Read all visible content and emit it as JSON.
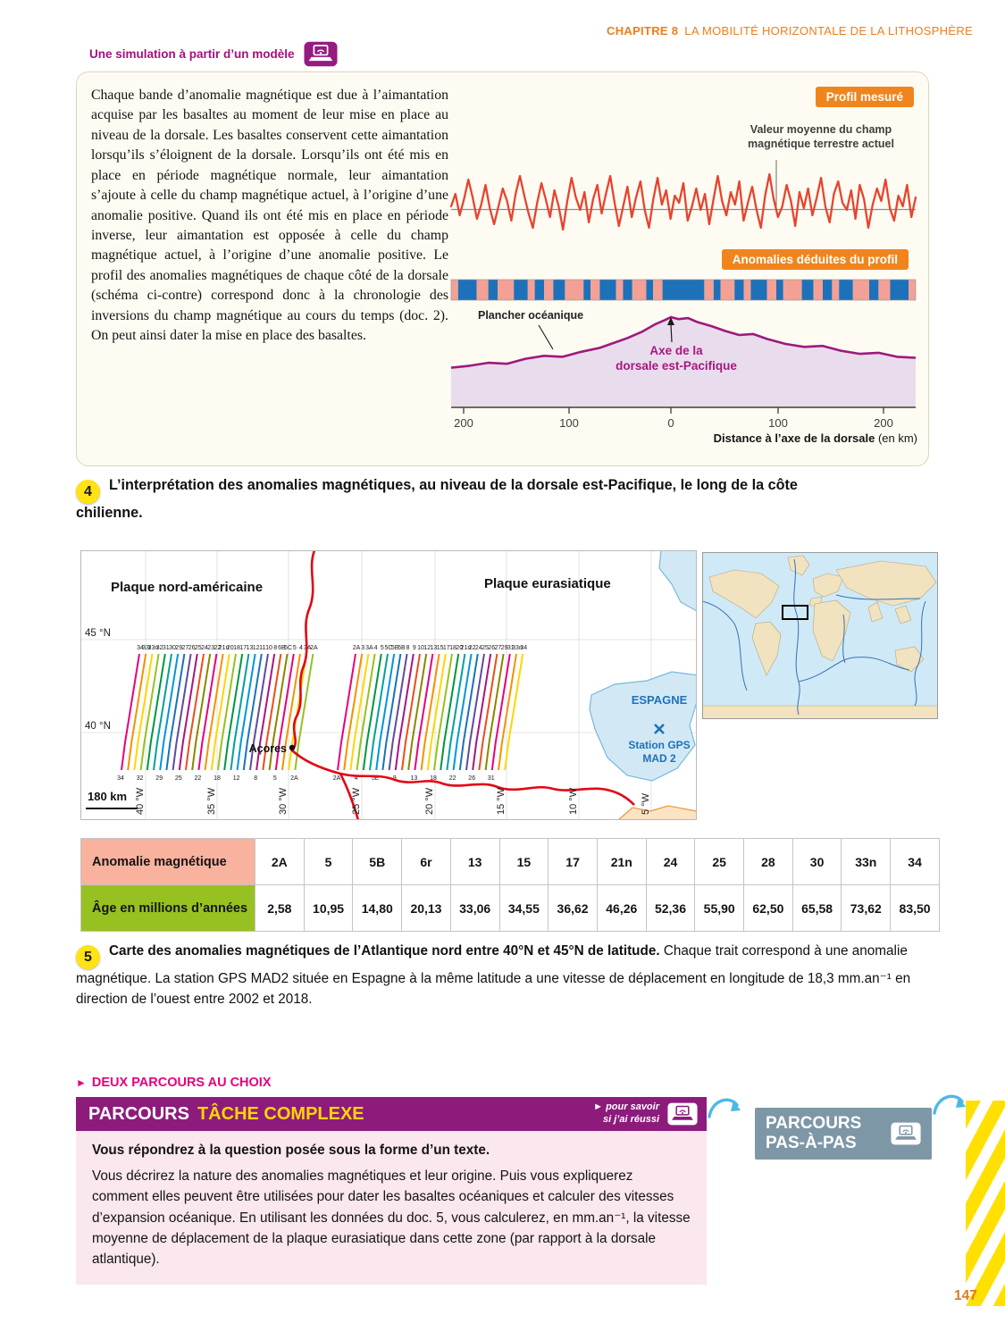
{
  "header": {
    "chapter_label": "CHAPITRE 8",
    "chapter_title": "LA MOBILITÉ HORIZONTALE DE LA LITHOSPHÈRE",
    "sim_label": "Une simulation à partir d’un modèle"
  },
  "colors": {
    "chapter_orange": "#f07d1a",
    "magenta": "#a3117e",
    "badge_orange": "#f0851d",
    "profile_red": "#e8432e",
    "polarity_normal": "#1d71b8",
    "polarity_reverse": "#f4a095",
    "seafloor_line": "#9d1a7c",
    "seafloor_fill": "#e9dcec",
    "ridge_red": "#e30613",
    "table_header_pink": "#f8b29e",
    "table_header_green": "#97c120",
    "banner_purple": "#8d1b7c",
    "banner_yellow": "#ffd500",
    "body_pink": "#fbe7ee",
    "pas_gray_blue": "#7e97a6",
    "hazard_yellow": "#ffe000",
    "caption_badge_yellow": "#ffe312"
  },
  "doc4": {
    "paragraph": "Chaque bande d’anomalie magnétique est due à l’aimantation acquise par les basaltes au moment de leur mise en place au niveau de la dorsale. Les basaltes conservent cette aimantation lorsqu’ils s’éloignent de la dorsale. Lorsqu’ils ont été mis en place en période magnétique normale, leur aimantation s’ajoute à celle du champ magnétique actuel, à l’origine d’une anomalie positive. Quand ils ont été mis en place en période inverse, leur aimantation est opposée à celle du champ magnétique actuel, à l’origine d’une anomalie positive. Le profil des anomalies magnétiques de chaque côté de la dorsale (schéma ci-contre) correspond donc à la chronologie des inversions du champ magnétique au cours du temps (doc. 2). On peut ainsi dater la mise en place des basaltes.",
    "figure": {
      "badge_profile": "Profil mesuré",
      "badge_anomalies": "Anomalies déduites du profil",
      "mean_line1": "Valeur moyenne du champ",
      "mean_line2": "magnétique terrestre actuel",
      "ocean_floor_label": "Plancher océanique",
      "ridge_label_1": "Axe de la",
      "ridge_label_2": "dorsale est-Pacifique",
      "axis_label_bold": "Distance à l’axe de la dorsale",
      "axis_label_unit": " (en km)",
      "x_ticks": [
        "200",
        "100",
        "0",
        "100",
        "200"
      ]
    },
    "caption_num": "4",
    "caption_text": "L’interprétation des anomalies magnétiques, au niveau de la dorsale est-Pacifique, le long de la côte chilienne."
  },
  "chart_data": [
    {
      "type": "line",
      "title": "Profil mesuré",
      "xlabel": "Distance à l’axe de la dorsale (en km)",
      "x_range_km": [
        -230,
        230
      ],
      "x_ticks_km": [
        -200,
        -100,
        0,
        100,
        200
      ],
      "baseline_label": "Valeur moyenne du champ magnétique terrestre actuel",
      "series": [
        {
          "name": "Champ magnétique mesuré (écart relatif à la valeur moyenne)",
          "values": [
            0.1,
            0.45,
            -0.15,
            0.3,
            0.85,
            0.35,
            -0.25,
            0.15,
            0.7,
            0.05,
            -0.4,
            0.1,
            0.6,
            0.25,
            -0.3,
            0.45,
            0.95,
            0.4,
            -0.1,
            -0.5,
            0.2,
            0.75,
            0.3,
            -0.2,
            0.55,
            0.1,
            -0.55,
            0.25,
            0.9,
            0.35,
            0.0,
            0.5,
            -0.35,
            0.3,
            0.7,
            -0.1,
            0.45,
            0.95,
            0.2,
            -0.45,
            0.1,
            0.65,
            -0.2,
            0.35,
            0.8,
            0.0,
            -0.5,
            0.3,
            0.9,
            0.15,
            0.55,
            -0.25,
            0.4,
            0.2,
            0.75,
            -0.3,
            0.1,
            0.6,
            0.0,
            0.45,
            -0.4,
            0.3,
            0.95,
            0.25,
            -0.15,
            0.5,
            0.15,
            0.8,
            -0.3,
            0.2,
            0.65,
            0.0,
            -0.5,
            0.4,
            1.0,
            0.3,
            -0.2,
            0.1,
            0.7,
            0.25,
            -0.45,
            0.5,
            0.05,
            0.6,
            -0.15,
            0.35,
            0.9,
            0.1,
            -0.35,
            0.45,
            0.8,
            0.2,
            0.0,
            0.55,
            -0.25,
            0.7,
            0.3,
            -0.5,
            0.15,
            0.6,
            0.25,
            0.85,
            0.05,
            -0.3,
            0.4,
            0.1,
            0.7,
            -0.2,
            0.35
          ]
        }
      ]
    },
    {
      "type": "heatmap",
      "title": "Anomalies déduites du profil",
      "x_range_km": [
        -230,
        230
      ],
      "polarity_colors": {
        "n": "#1d71b8",
        "r": "#f4a095"
      },
      "segments": [
        [
          0.015,
          "r"
        ],
        [
          0.04,
          "n"
        ],
        [
          0.025,
          "r"
        ],
        [
          0.02,
          "n"
        ],
        [
          0.035,
          "r"
        ],
        [
          0.03,
          "n"
        ],
        [
          0.015,
          "r"
        ],
        [
          0.02,
          "n"
        ],
        [
          0.02,
          "r"
        ],
        [
          0.025,
          "n"
        ],
        [
          0.04,
          "r"
        ],
        [
          0.015,
          "n"
        ],
        [
          0.02,
          "r"
        ],
        [
          0.035,
          "n"
        ],
        [
          0.015,
          "r"
        ],
        [
          0.02,
          "n"
        ],
        [
          0.03,
          "r"
        ],
        [
          0.015,
          "n"
        ],
        [
          0.02,
          "r"
        ],
        [
          0.045,
          "n"
        ],
        [
          0.045,
          "n"
        ],
        [
          0.02,
          "r"
        ],
        [
          0.015,
          "n"
        ],
        [
          0.03,
          "r"
        ],
        [
          0.02,
          "n"
        ],
        [
          0.015,
          "r"
        ],
        [
          0.035,
          "n"
        ],
        [
          0.02,
          "r"
        ],
        [
          0.015,
          "n"
        ],
        [
          0.04,
          "r"
        ],
        [
          0.025,
          "n"
        ],
        [
          0.02,
          "r"
        ],
        [
          0.02,
          "n"
        ],
        [
          0.015,
          "r"
        ],
        [
          0.03,
          "n"
        ],
        [
          0.035,
          "r"
        ],
        [
          0.02,
          "n"
        ],
        [
          0.025,
          "r"
        ],
        [
          0.04,
          "n"
        ],
        [
          0.015,
          "r"
        ]
      ]
    },
    {
      "type": "area",
      "title": "Plancher océanique",
      "annotation": "Axe de la dorsale est-Pacifique",
      "x_range_km": [
        -230,
        230
      ],
      "points": [
        [
          0.0,
          0.4
        ],
        [
          0.04,
          0.42
        ],
        [
          0.08,
          0.45
        ],
        [
          0.12,
          0.44
        ],
        [
          0.16,
          0.49
        ],
        [
          0.2,
          0.52
        ],
        [
          0.24,
          0.51
        ],
        [
          0.28,
          0.56
        ],
        [
          0.32,
          0.6
        ],
        [
          0.35,
          0.65
        ],
        [
          0.38,
          0.7
        ],
        [
          0.41,
          0.76
        ],
        [
          0.44,
          0.84
        ],
        [
          0.46,
          0.88
        ],
        [
          0.473,
          0.91
        ],
        [
          0.49,
          0.89
        ],
        [
          0.51,
          0.9
        ],
        [
          0.53,
          0.86
        ],
        [
          0.56,
          0.82
        ],
        [
          0.59,
          0.77
        ],
        [
          0.62,
          0.73
        ],
        [
          0.65,
          0.74
        ],
        [
          0.68,
          0.69
        ],
        [
          0.72,
          0.64
        ],
        [
          0.76,
          0.61
        ],
        [
          0.8,
          0.62
        ],
        [
          0.84,
          0.57
        ],
        [
          0.88,
          0.54
        ],
        [
          0.92,
          0.55
        ],
        [
          0.96,
          0.51
        ],
        [
          1.0,
          0.5
        ]
      ]
    }
  ],
  "map": {
    "plate_left": "Plaque nord-américaine",
    "plate_right": "Plaque eurasiatique",
    "azores": "Açores",
    "spain": "ESPAGNE",
    "gps_line1": "Station GPS",
    "gps_line2": "MAD 2",
    "lat_labels": [
      "45 °N",
      "40 °N"
    ],
    "lon_labels": [
      "40 °W",
      "35 °W",
      "30 °W",
      "25 °W",
      "20 °W",
      "15 °W",
      "10 °W",
      "5 °W"
    ],
    "scale": "180 km",
    "stripe_palette": [
      "#e6007e",
      "#f39200",
      "#ffd500",
      "#95c11f",
      "#009640",
      "#00a19a",
      "#0095db",
      "#1d71b8",
      "#5f4b9b",
      "#a61680",
      "#e94e1b",
      "#878700"
    ],
    "stripes_left": [
      "34",
      "33r",
      "33n",
      "32",
      "31",
      "30",
      "29",
      "27",
      "26",
      "25",
      "24",
      "23",
      "22",
      "21n",
      "20",
      "18",
      "17",
      "13",
      "12",
      "11",
      "10",
      "8",
      "6B",
      "5C",
      "5",
      "4",
      "3A",
      "2A"
    ],
    "stripes_right": [
      "2A",
      "3",
      "3A",
      "4",
      "5",
      "5C",
      "5E",
      "6B",
      "8",
      "9",
      "10",
      "12",
      "13",
      "15",
      "17",
      "18",
      "20",
      "21n",
      "22",
      "24",
      "25",
      "26",
      "27",
      "29",
      "31",
      "33n",
      "34"
    ]
  },
  "table": {
    "row1_header": "Anomalie magnétique",
    "row2_header": "Âge en millions d’années",
    "anomalies": [
      "2A",
      "5",
      "5B",
      "6r",
      "13",
      "15",
      "17",
      "21n",
      "24",
      "25",
      "28",
      "30",
      "33n",
      "34"
    ],
    "ages": [
      "2,58",
      "10,95",
      "14,80",
      "20,13",
      "33,06",
      "34,55",
      "36,62",
      "46,26",
      "52,36",
      "55,90",
      "62,50",
      "65,58",
      "73,62",
      "83,50"
    ]
  },
  "caption5": {
    "num": "5",
    "bold": "Carte des anomalies magnétiques de l’Atlantique nord entre 40°N et 45°N de latitude.",
    "text": " Chaque trait correspond à une anomalie magnétique. La station GPS MAD2 située en Espagne à la même latitude a une vitesse de déplacement en longitude de 18,3 mm.an⁻¹ en direction de l’ouest entre 2002 et 2018."
  },
  "parcours": {
    "choice_header": "DEUX PARCOURS AU CHOIX",
    "complexe": {
      "title_white": "PARCOURS",
      "title_yellow": "TÂCHE COMPLEXE",
      "savoir_line1": "► pour savoir",
      "savoir_line2": "si j’ai réussi",
      "lead": "Vous répondrez à la question posée sous la forme d’un texte.",
      "body": "Vous décrirez la nature des anomalies magnétiques et leur origine. Puis vous expliquerez comment elles peuvent être utilisées pour dater les basaltes océaniques et calculer des vitesses d’expansion océanique. En utilisant les données du doc. 5, vous calculerez, en mm.an⁻¹, la vitesse moyenne de déplacement de la plaque eurasiatique dans cette zone (par rapport à la dorsale atlantique)."
    },
    "pas": {
      "line1": "PARCOURS",
      "line2": "PAS-À-PAS"
    }
  },
  "page_number": "147"
}
